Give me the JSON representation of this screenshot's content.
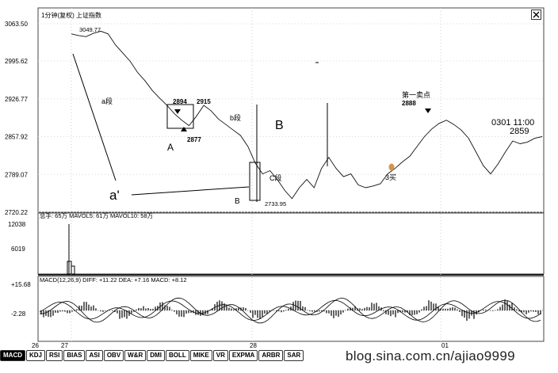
{
  "panel": {
    "title": "1分钟(复权)",
    "index_name": "上证指数"
  },
  "chart_data": {
    "type": "line",
    "price_axis": {
      "ticks": [
        "3063.50",
        "2995.62",
        "2926.77",
        "2857.92",
        "2789.07",
        "2720.22"
      ],
      "ylim": [
        2720.22,
        3063.5
      ]
    },
    "series": [
      {
        "x": [
          0,
          10,
          20,
          30,
          40,
          50,
          60,
          70,
          80,
          90,
          100,
          110,
          120,
          130,
          140,
          150,
          160,
          170,
          180,
          190,
          200,
          210,
          220,
          230,
          240,
          250,
          260,
          270,
          280,
          290,
          300,
          310,
          320,
          330,
          340,
          350,
          360,
          370,
          380,
          390,
          400,
          410,
          420,
          430,
          440,
          450,
          460,
          470,
          480,
          490,
          500,
          510,
          520,
          530,
          540,
          550,
          560,
          570,
          580,
          590,
          600,
          610,
          620,
          630,
          640
        ],
        "values": [
          3045,
          3042,
          3040,
          3046,
          3050,
          3045,
          3025,
          3010,
          2995,
          2975,
          2960,
          2942,
          2928,
          2915,
          2900,
          2888,
          2878,
          2895,
          2915,
          2905,
          2890,
          2880,
          2870,
          2860,
          2840,
          2810,
          2790,
          2796,
          2780,
          2760,
          2745,
          2765,
          2780,
          2765,
          2800,
          2820,
          2800,
          2785,
          2790,
          2770,
          2765,
          2768,
          2772,
          2790,
          2800,
          2812,
          2822,
          2840,
          2858,
          2872,
          2882,
          2888,
          2880,
          2870,
          2855,
          2830,
          2805,
          2790,
          2808,
          2830,
          2850,
          2845,
          2848,
          2855,
          2858
        ]
      }
    ],
    "annotations": {
      "high_label": "3049.77",
      "segment_a": "a段",
      "segment_b": "b段",
      "segment_c": "C段",
      "box1_high": "2894",
      "box1_high2": "2915",
      "box1_low": "2877",
      "label_A": "A",
      "label_B_small": "B",
      "label_B_big": "B",
      "label_a_prime": "a'",
      "low_label": "2733.95",
      "sell_label": "第一卖点",
      "sell_value": "2888",
      "buy_label": "3买",
      "time_label": "0301 11:00",
      "time_value": "2859"
    },
    "volume": {
      "header": "总手: 65万  MAVOL5: 61万  MAVOL10: 58万",
      "ticks": [
        "12038",
        "6019"
      ]
    },
    "macd": {
      "header": "MACD(12,26,9)  DIFF: +11.22  DEA: +7.16  MACD: +8.12",
      "ticks": [
        "+15.68",
        "-2.28"
      ]
    },
    "x_axis": {
      "ticks": [
        "26",
        "27",
        "28",
        "01"
      ]
    }
  },
  "tabs": [
    "MACD",
    "KDJ",
    "RSI",
    "BIAS",
    "ASI",
    "OBV",
    "W&R",
    "DMI",
    "BOLL",
    "MIKE",
    "VR",
    "EXPMA",
    "ARBR",
    "SAR"
  ],
  "watermark": "blog.sina.com.cn/ajiao9999"
}
